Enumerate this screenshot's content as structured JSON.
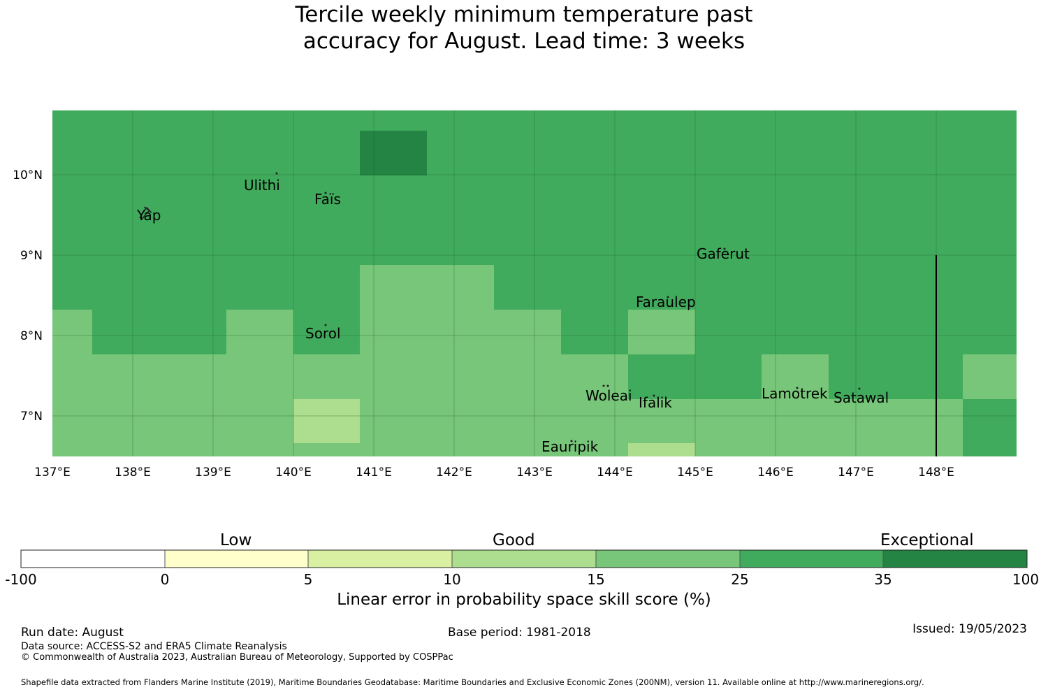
{
  "title": {
    "line1": "Tercile weekly minimum temperature past",
    "line2": "accuracy for August. Lead time: 3 weeks"
  },
  "map": {
    "lon_labels": [
      "137°E",
      "138°E",
      "139°E",
      "140°E",
      "141°E",
      "142°E",
      "143°E",
      "144°E",
      "145°E",
      "146°E",
      "147°E",
      "148°E"
    ],
    "lat_labels": [
      "10°N",
      "9°N",
      "8°N",
      "7°N"
    ],
    "places": [
      {
        "name": "Yap"
      },
      {
        "name": "Ulithi"
      },
      {
        "name": "Faïs"
      },
      {
        "name": "Gaferut"
      },
      {
        "name": "Faraulep"
      },
      {
        "name": "Sorol"
      },
      {
        "name": "Woleai"
      },
      {
        "name": "Ifalik"
      },
      {
        "name": "Lamotrek"
      },
      {
        "name": "Satawal"
      },
      {
        "name": "Eauripik"
      }
    ],
    "category_colors": {
      "cat15_25": "#78c679",
      "cat25_35": "#41ab5d",
      "cat35_100": "#238443",
      "cat10_15": "#addd8e"
    }
  },
  "colorbar": {
    "categories": [
      "Low",
      "Good",
      "Exceptional"
    ],
    "ticks": [
      "-100",
      "0",
      "5",
      "10",
      "15",
      "25",
      "35",
      "100"
    ],
    "colors": [
      "#ffffff",
      "#ffffcc",
      "#d9f0a3",
      "#addd8e",
      "#78c679",
      "#41ab5d",
      "#238443"
    ],
    "label": "Linear error in probability space skill score (%)"
  },
  "footer": {
    "run_date": "Run date: August",
    "base_period": "Base period: 1981-2018",
    "issued": "Issued: 19/05/2023",
    "data_source": "Data source: ACCESS-S2 and ERA5 Climate Reanalysis",
    "copyright": "© Commonwealth of Australia 2023, Australian Bureau of Meteorology, Supported by COSPPac",
    "shapefile": "Shapefile data extracted from Flanders Marine Institute (2019), Maritime Boundaries Geodatabase: Maritime Boundaries and Exclusive Economic Zones (200NM), version 11. Available online at http://www.marineregions.org/."
  }
}
